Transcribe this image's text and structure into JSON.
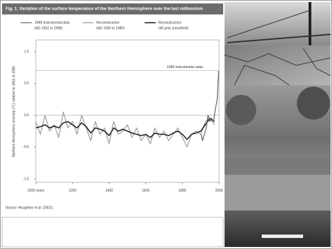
{
  "chart_data": {
    "type": "line",
    "title": "Fig. 1. Variation of the surface temperature of the Northern Hemisphere over the last millennium",
    "y_label": "Northern Hemisphere anomaly (°C) relative to 1961 to 1990",
    "source": "Source: Houghton et al. (2001).",
    "xlim": [
      1000,
      2000
    ],
    "xticks": [
      {
        "value": 1000,
        "label": "1000 years"
      },
      1200,
      1400,
      1600,
      1800,
      2000
    ],
    "ylim": [
      -1.0,
      1.0
    ],
    "yticks": [
      {
        "value": -1.0,
        "label": "-1.0"
      },
      {
        "value": -0.5,
        "label": "-0.5"
      },
      {
        "value": 0.0,
        "label": "0.0"
      },
      {
        "value": 0.5,
        "label": "0.5"
      },
      {
        "value": 1.0,
        "label": "1.0"
      }
    ],
    "reference_line": {
      "label": "1998 instrumental value",
      "value": 0.7
    },
    "series": [
      {
        "name": "Reconstruction",
        "period": "(AD 1000 to 1980)",
        "color": "#a8a8a8",
        "x": [
          1000,
          1025,
          1050,
          1075,
          1100,
          1125,
          1150,
          1175,
          1200,
          1225,
          1250,
          1275,
          1300,
          1325,
          1350,
          1375,
          1400,
          1425,
          1450,
          1475,
          1500,
          1525,
          1550,
          1575,
          1600,
          1625,
          1650,
          1675,
          1700,
          1725,
          1750,
          1775,
          1800,
          1825,
          1850,
          1875,
          1900,
          1925,
          1950,
          1975
        ],
        "values": [
          -0.1,
          -0.3,
          0.0,
          -0.25,
          -0.15,
          -0.35,
          0.05,
          -0.2,
          -0.1,
          -0.3,
          0.0,
          -0.2,
          -0.4,
          -0.1,
          -0.3,
          -0.2,
          -0.45,
          -0.1,
          -0.3,
          -0.25,
          -0.15,
          -0.35,
          -0.2,
          -0.4,
          -0.3,
          -0.45,
          -0.2,
          -0.35,
          -0.25,
          -0.4,
          -0.3,
          -0.2,
          -0.35,
          -0.5,
          -0.3,
          -0.25,
          -0.3,
          -0.1,
          -0.05,
          -0.15
        ]
      },
      {
        "name": "Reconstruction",
        "period": "(40 year smoothed)",
        "color": "#222222",
        "x": [
          1000,
          1025,
          1050,
          1075,
          1100,
          1125,
          1150,
          1175,
          1200,
          1225,
          1250,
          1275,
          1300,
          1325,
          1350,
          1375,
          1400,
          1425,
          1450,
          1475,
          1500,
          1525,
          1550,
          1575,
          1600,
          1625,
          1650,
          1675,
          1700,
          1725,
          1750,
          1775,
          1800,
          1825,
          1850,
          1875,
          1900,
          1925,
          1950,
          1975
        ],
        "values": [
          -0.2,
          -0.18,
          -0.15,
          -0.2,
          -0.17,
          -0.2,
          -0.12,
          -0.1,
          -0.15,
          -0.2,
          -0.12,
          -0.18,
          -0.28,
          -0.2,
          -0.22,
          -0.25,
          -0.32,
          -0.2,
          -0.25,
          -0.22,
          -0.25,
          -0.28,
          -0.3,
          -0.32,
          -0.3,
          -0.35,
          -0.28,
          -0.3,
          -0.3,
          -0.32,
          -0.28,
          -0.25,
          -0.3,
          -0.38,
          -0.3,
          -0.28,
          -0.25,
          -0.15,
          -0.05,
          -0.1
        ]
      },
      {
        "name": "1998 instrumental data",
        "period": "(AD 1902 to 1998)",
        "color": "#555555",
        "x": [
          1902,
          1910,
          1920,
          1930,
          1940,
          1950,
          1960,
          1970,
          1980,
          1990,
          1998
        ],
        "values": [
          -0.3,
          -0.4,
          -0.3,
          -0.2,
          0.0,
          -0.1,
          -0.05,
          -0.1,
          0.1,
          0.25,
          0.7
        ]
      }
    ]
  }
}
